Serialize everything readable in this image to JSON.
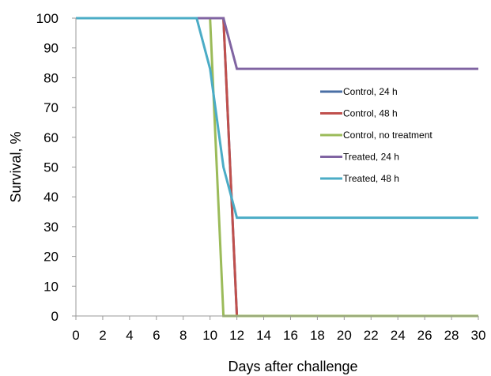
{
  "chart_data": {
    "type": "line",
    "title": "",
    "xlabel": "Days after challenge",
    "ylabel": "Survival, %",
    "xlim": [
      0,
      30
    ],
    "ylim": [
      0,
      100
    ],
    "xticks": [
      0,
      2,
      4,
      6,
      8,
      10,
      12,
      14,
      16,
      18,
      20,
      22,
      24,
      26,
      28,
      30
    ],
    "yticks": [
      0,
      10,
      20,
      30,
      40,
      50,
      60,
      70,
      80,
      90,
      100
    ],
    "grid": false,
    "legend_position": "right",
    "series": [
      {
        "name": "Control, 24 h",
        "color": "#4a6fa5",
        "points": [
          [
            0,
            100
          ],
          [
            11,
            100
          ],
          [
            12,
            0
          ],
          [
            30,
            0
          ]
        ]
      },
      {
        "name": "Control, 48 h",
        "color": "#c0504d",
        "points": [
          [
            0,
            100
          ],
          [
            11,
            100
          ],
          [
            12,
            0
          ],
          [
            30,
            0
          ]
        ]
      },
      {
        "name": "Control, no treatment",
        "color": "#9bbb59",
        "points": [
          [
            0,
            100
          ],
          [
            10,
            100
          ],
          [
            11,
            0
          ],
          [
            30,
            0
          ]
        ]
      },
      {
        "name": "Treated, 24 h",
        "color": "#8064a2",
        "points": [
          [
            0,
            100
          ],
          [
            11,
            100
          ],
          [
            12,
            83
          ],
          [
            30,
            83
          ]
        ]
      },
      {
        "name": "Treated, 48 h",
        "color": "#4bacc6",
        "points": [
          [
            0,
            100
          ],
          [
            9,
            100
          ],
          [
            10,
            83
          ],
          [
            11,
            50
          ],
          [
            12,
            33
          ],
          [
            30,
            33
          ]
        ]
      }
    ]
  }
}
